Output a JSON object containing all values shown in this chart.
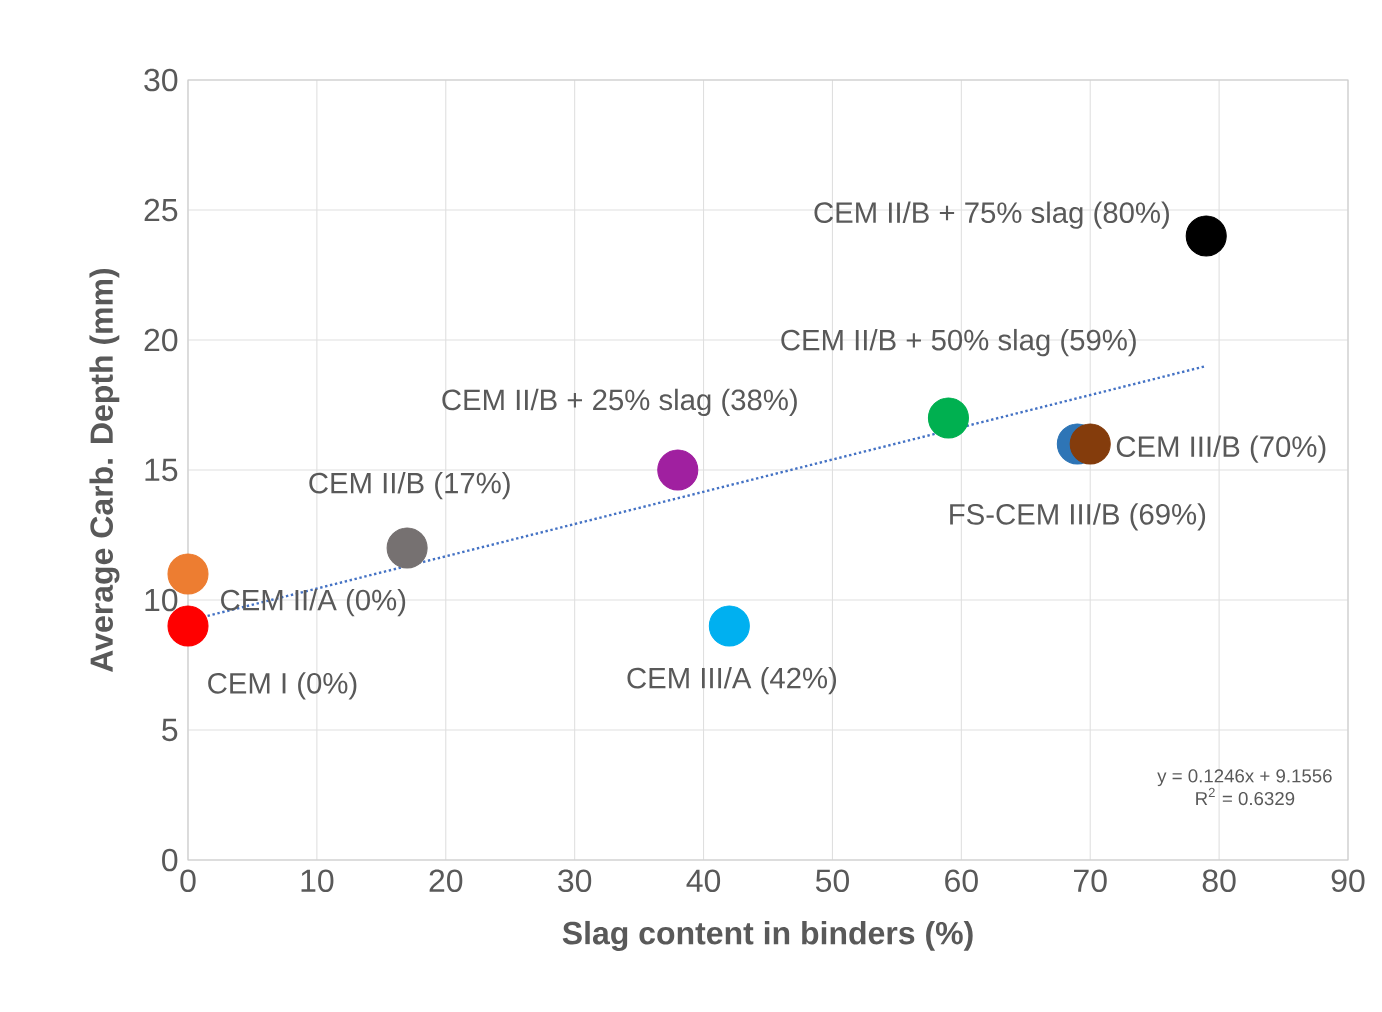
{
  "chart_data": {
    "type": "scatter",
    "xlabel": "Slag content in binders (%)",
    "ylabel": "Average Carb. Depth (mm)",
    "xlim": [
      0,
      90
    ],
    "xticks": [
      0,
      10,
      20,
      30,
      40,
      50,
      60,
      70,
      80,
      90
    ],
    "ylim": [
      0,
      30
    ],
    "yticks": [
      0,
      5,
      10,
      15,
      20,
      25,
      30
    ],
    "grid": true,
    "marker": "circle",
    "series": [
      {
        "type": "line",
        "x": [
          0,
          79
        ],
        "values": [
          9.2,
          19.0
        ],
        "color": "#4472c4",
        "line_style": "dotted",
        "marker": "none"
      },
      {
        "name": "CEM I (0%)",
        "x": [
          0
        ],
        "values": [
          9
        ],
        "color": "#ff0000"
      },
      {
        "name": "CEM II/A (0%)",
        "x": [
          0
        ],
        "values": [
          11
        ],
        "color": "#ed7d31"
      },
      {
        "name": "CEM II/B (17%)",
        "x": [
          17
        ],
        "values": [
          12
        ],
        "color": "#767171"
      },
      {
        "name": "CEM II/B + 25% slag (38%)",
        "x": [
          38
        ],
        "values": [
          15
        ],
        "color": "#a020a0"
      },
      {
        "name": "CEM III/A (42%)",
        "x": [
          42
        ],
        "values": [
          9
        ],
        "color": "#00b0f0"
      },
      {
        "name": "CEM II/B + 50% slag (59%)",
        "x": [
          59
        ],
        "values": [
          17
        ],
        "color": "#00b050"
      },
      {
        "name": "FS-CEM III/B (69%)",
        "x": [
          69
        ],
        "values": [
          16
        ],
        "color": "#2e75b6"
      },
      {
        "name": "CEM III/B (70%)",
        "x": [
          70
        ],
        "values": [
          16
        ],
        "color": "#843c0c"
      },
      {
        "name": "CEM II/B + 75% slag (80%)",
        "x": [
          79
        ],
        "values": [
          24
        ],
        "color": "#000000"
      }
    ],
    "annotations": [
      "y = 0.1246x + 9.1556",
      "R$^{2}$ = 0.6329"
    ]
  }
}
